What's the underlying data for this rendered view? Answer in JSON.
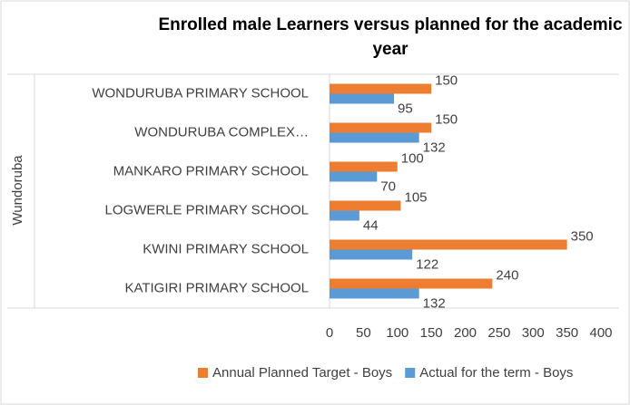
{
  "chart_data": {
    "type": "bar",
    "orientation": "horizontal",
    "title": "Enrolled male Learners versus planned for the academic year",
    "group_label": "Wundoruba",
    "categories": [
      "WONDURUBA PRIMARY SCHOOL",
      "WONDURUBA COMPLEX…",
      "MANKARO PRIMARY SCHOOL",
      "LOGWERLE PRIMARY SCHOOL",
      "KWINI PRIMARY SCHOOL",
      "KATIGIRI PRIMARY SCHOOL"
    ],
    "series": [
      {
        "name": "Annual Planned Target - Boys",
        "color": "#ed7d31",
        "values": [
          150,
          150,
          100,
          105,
          350,
          240
        ]
      },
      {
        "name": "Actual for the term - Boys",
        "color": "#5b9bd5",
        "values": [
          95,
          132,
          70,
          44,
          122,
          132
        ]
      }
    ],
    "xlim": [
      0,
      400
    ],
    "xticks": [
      0,
      50,
      100,
      150,
      200,
      250,
      300,
      350,
      400
    ],
    "grid": false,
    "legend": "bottom"
  }
}
